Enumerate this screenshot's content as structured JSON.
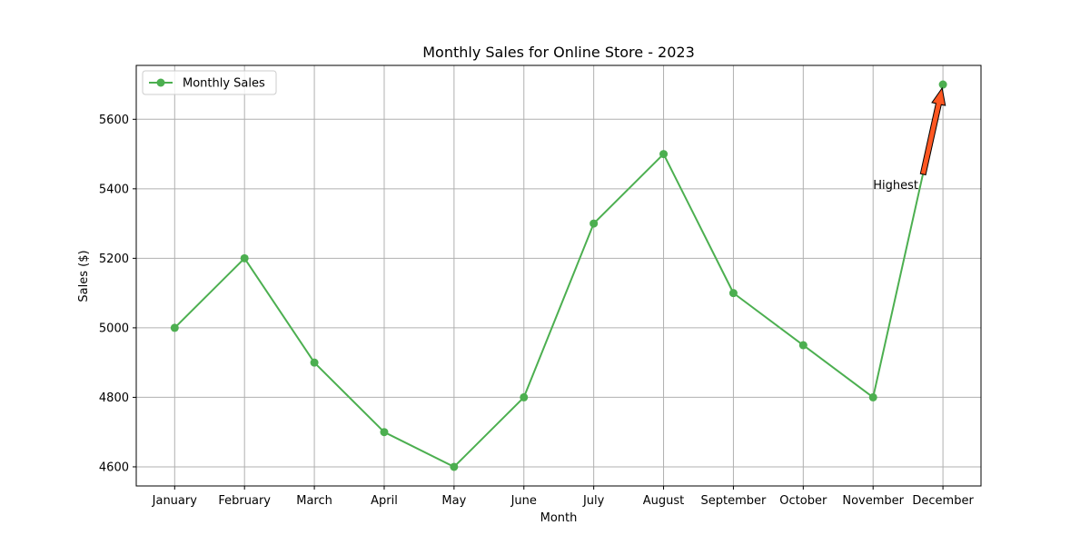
{
  "chart_data": {
    "type": "line",
    "title": "Monthly Sales for Online Store - 2023",
    "xlabel": "Month",
    "ylabel": "Sales ($)",
    "categories": [
      "January",
      "February",
      "March",
      "April",
      "May",
      "June",
      "July",
      "August",
      "September",
      "October",
      "November",
      "December"
    ],
    "series": [
      {
        "name": "Monthly Sales",
        "values": [
          5000,
          5200,
          4900,
          4700,
          4600,
          4800,
          5300,
          5500,
          5100,
          4950,
          4800,
          5700
        ],
        "color": "#4caf50"
      }
    ],
    "ylim": [
      4545,
      5755
    ],
    "yticks": [
      4600,
      4800,
      5000,
      5200,
      5400,
      5600
    ],
    "grid": true,
    "legend": "top-left",
    "annotation": {
      "text": "Highest",
      "category": "December",
      "value": 5700,
      "text_category": "November",
      "text_value": 5400,
      "arrow_color": "#ff5722"
    }
  }
}
